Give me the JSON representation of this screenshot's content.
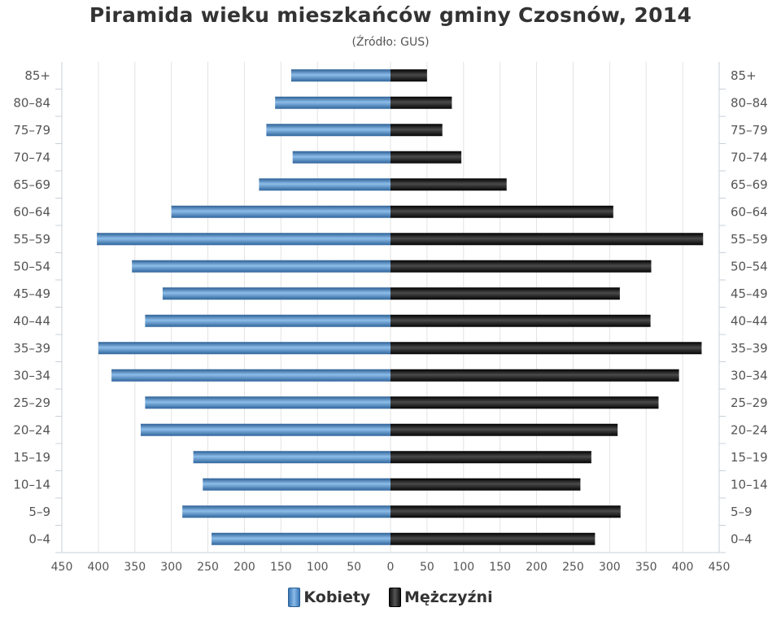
{
  "chart_data": {
    "type": "bar",
    "orientation": "horizontal",
    "layout": "population-pyramid",
    "title": "Piramida wieku mieszkańców gminy Czosnów, 2014",
    "subtitle": "(Źródło: GUS)",
    "categories": [
      "85+",
      "80-84",
      "75-79",
      "70-74",
      "65-69",
      "60-64",
      "55-59",
      "50-54",
      "45-49",
      "40-44",
      "35-39",
      "30-34",
      "25-29",
      "20-24",
      "15-19",
      "10-14",
      "5-9",
      "0-4"
    ],
    "series": [
      {
        "name": "Kobiety",
        "side": "left",
        "color": "#4a87c7",
        "values": [
          136,
          158,
          170,
          134,
          180,
          300,
          402,
          354,
          312,
          336,
          400,
          382,
          336,
          342,
          270,
          257,
          285,
          245
        ]
      },
      {
        "name": "Mężczyźni",
        "side": "right",
        "color": "#1a1a1a",
        "values": [
          50,
          84,
          71,
          97,
          159,
          305,
          428,
          357,
          314,
          356,
          426,
          395,
          367,
          311,
          275,
          260,
          315,
          280
        ]
      }
    ],
    "xlim": [
      -450,
      450
    ],
    "xticks": [
      "450",
      "400",
      "350",
      "300",
      "250",
      "200",
      "150",
      "100",
      "50",
      "0",
      "50",
      "100",
      "150",
      "200",
      "250",
      "300",
      "350",
      "400",
      "450"
    ],
    "grid": true,
    "legend": "bottom-center",
    "xlabel": "",
    "ylabel": ""
  }
}
